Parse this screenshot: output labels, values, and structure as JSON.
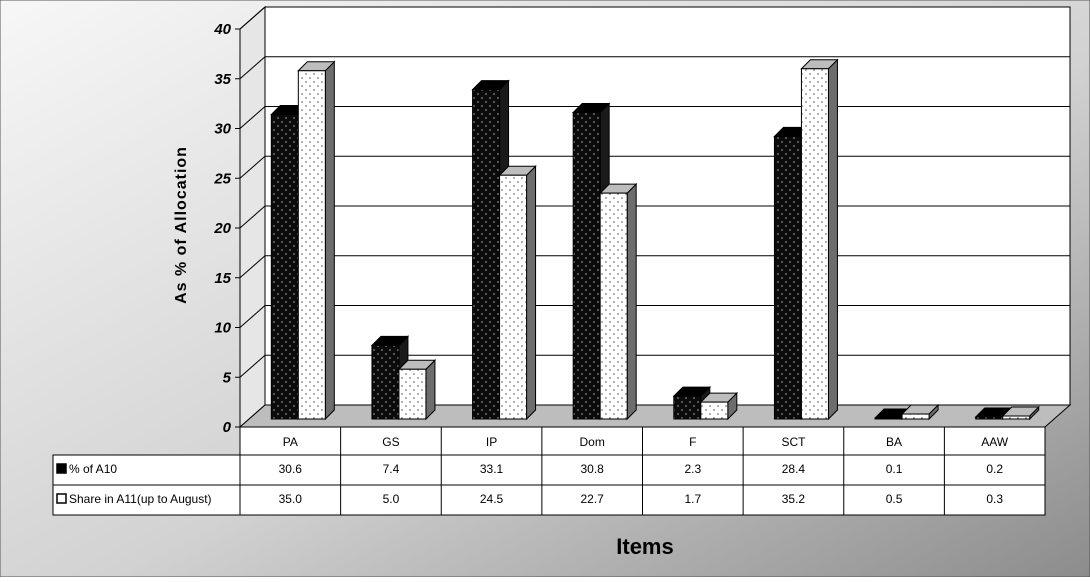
{
  "chart_data": {
    "type": "bar",
    "xlabel": "Items",
    "ylabel": "As % of Allocation",
    "ylim": [
      0,
      40
    ],
    "yticks": [
      "0",
      "5",
      "10",
      "15",
      "20",
      "25",
      "30",
      "35",
      "40"
    ],
    "categories": [
      "PA",
      "GS",
      "IP",
      "Dom",
      "F",
      "SCT",
      "BA",
      "AAW"
    ],
    "series": [
      {
        "name": "% of A10",
        "values": [
          30.6,
          7.4,
          33.1,
          30.8,
          2.3,
          28.4,
          0.1,
          0.2
        ],
        "labels": [
          "30.6",
          "7.4",
          "33.1",
          "30.8",
          "2.3",
          "28.4",
          "0.1",
          "0.2"
        ],
        "color": "#111111"
      },
      {
        "name": "Share in A11(up to August)",
        "values": [
          35.0,
          5.0,
          24.5,
          22.7,
          1.7,
          35.2,
          0.5,
          0.3
        ],
        "labels": [
          "35.0",
          "5.0",
          "24.5",
          "22.7",
          "1.7",
          "35.2",
          "0.5",
          "0.3"
        ],
        "color": "#ffffff"
      }
    ],
    "grid": true,
    "style": "3d-clustered-column-with-data-table",
    "background": "gray-gradient"
  }
}
